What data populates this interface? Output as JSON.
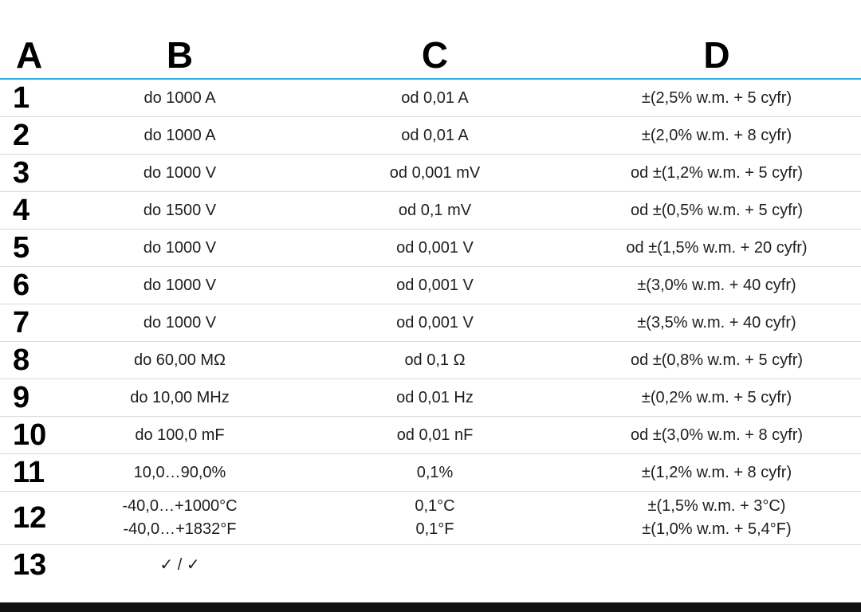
{
  "header": {
    "a": "A",
    "b": "B",
    "c": "C",
    "d": "D"
  },
  "rows": [
    {
      "num": "1",
      "b": "do 1000 A",
      "c": "od 0,01 A",
      "d": "±(2,5% w.m. + 5 cyfr)"
    },
    {
      "num": "2",
      "b": "do 1000 A",
      "c": "od 0,01 A",
      "d": "±(2,0% w.m. + 8 cyfr)"
    },
    {
      "num": "3",
      "b": "do 1000 V",
      "c": "od 0,001 mV",
      "d": "od ±(1,2% w.m. + 5 cyfr)"
    },
    {
      "num": "4",
      "b": "do 1500 V",
      "c": "od 0,1 mV",
      "d": "od ±(0,5% w.m. + 5 cyfr)"
    },
    {
      "num": "5",
      "b": "do 1000 V",
      "c": "od 0,001 V",
      "d": "od ±(1,5% w.m. + 20 cyfr)"
    },
    {
      "num": "6",
      "b": "do 1000 V",
      "c": "od 0,001 V",
      "d": "±(3,0% w.m. + 40 cyfr)"
    },
    {
      "num": "7",
      "b": "do 1000 V",
      "c": "od 0,001 V",
      "d": "±(3,5% w.m. + 40 cyfr)"
    },
    {
      "num": "8",
      "b": "do 60,00 MΩ",
      "c": "od 0,1 Ω",
      "d": "od ±(0,8% w.m. + 5 cyfr)"
    },
    {
      "num": "9",
      "b": "do 10,00 MHz",
      "c": "od 0,01 Hz",
      "d": "±(0,2% w.m. + 5 cyfr)"
    },
    {
      "num": "10",
      "b": "do 100,0 mF",
      "c": "od 0,01 nF",
      "d": "od ±(3,0% w.m. + 8 cyfr)"
    },
    {
      "num": "11",
      "b": "10,0…90,0%",
      "c": "0,1%",
      "d": "±(1,2% w.m. + 8 cyfr)"
    },
    {
      "num": "12",
      "b": "-40,0…+1000°C\n-40,0…+1832°F",
      "c": "0,1°C\n0,1°F",
      "d": "±(1,5% w.m. + 3°C)\n±(1,0% w.m. + 5,4°F)"
    },
    {
      "num": "13",
      "b": "✓ / ✓",
      "c": "",
      "d": ""
    }
  ],
  "colors": {
    "header_rule": "#33b1e4",
    "row_rule": "#dadada",
    "bottom_bar": "#111111"
  }
}
